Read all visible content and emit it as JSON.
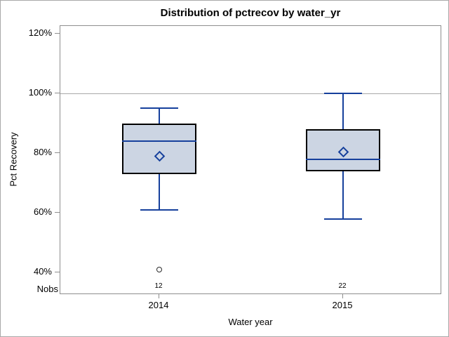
{
  "chart_data": {
    "type": "boxplot",
    "title": "Distribution of pctrecov by water_yr",
    "xlabel": "Water year",
    "ylabel": "Pct Recovery",
    "nobs_label": "Nobs",
    "ylim": [
      32.5,
      122.5
    ],
    "yticks": [
      {
        "label": "40%",
        "value": 40
      },
      {
        "label": "60%",
        "value": 60
      },
      {
        "label": "80%",
        "value": 80
      },
      {
        "label": "100%",
        "value": 100
      },
      {
        "label": "120%",
        "value": 120
      }
    ],
    "reference_line": 100,
    "grid": false,
    "legend": "none",
    "groups": [
      {
        "category": "2014",
        "nobs": 12,
        "whisker_low": 61,
        "q1": 73,
        "median": 84,
        "q3": 90,
        "whisker_high": 95,
        "mean": 79,
        "outliers": [
          41
        ]
      },
      {
        "category": "2015",
        "nobs": 22,
        "whisker_low": 58,
        "q1": 74,
        "median": 78,
        "q3": 88,
        "whisker_high": 100,
        "mean": 80.5,
        "outliers": []
      }
    ],
    "colors": {
      "box_fill": "#ccd5e3",
      "box_border": "#000000",
      "line": "#16409c",
      "outlier": "#2b2b2b",
      "frame": "#8e8e8e",
      "reference": "#a8a8a8"
    }
  }
}
